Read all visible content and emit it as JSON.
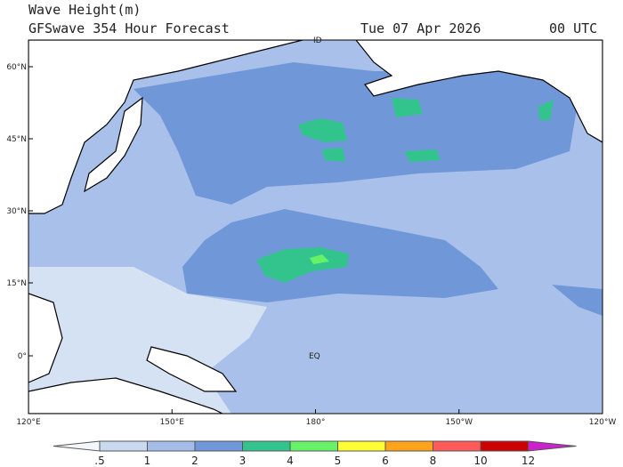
{
  "header": {
    "title": "Wave Height(m)",
    "subtitle": "GFSwave 354 Hour Forecast",
    "date": "Tue 07 Apr 2026",
    "time": "00 UTC"
  },
  "map": {
    "lat_labels": [
      "60°N",
      "45°N",
      "30°N",
      "15°N",
      "0°"
    ],
    "lon_labels": [
      "120°E",
      "150°E",
      "180°",
      "150°W",
      "120°W"
    ],
    "annotations": [
      "EQ",
      "ID"
    ]
  },
  "colorbar": {
    "labels": [
      ".5",
      "1",
      "2",
      "3",
      "4",
      "5",
      "6",
      "8",
      "10",
      "12"
    ],
    "colors": [
      "#f4f7fc",
      "#c8d9f0",
      "#a4bde8",
      "#6f97d9",
      "#33c48e",
      "#66f266",
      "#ffff33",
      "#ffa31a",
      "#ff5a5a",
      "#cc0000",
      "#cc22cc"
    ]
  }
}
